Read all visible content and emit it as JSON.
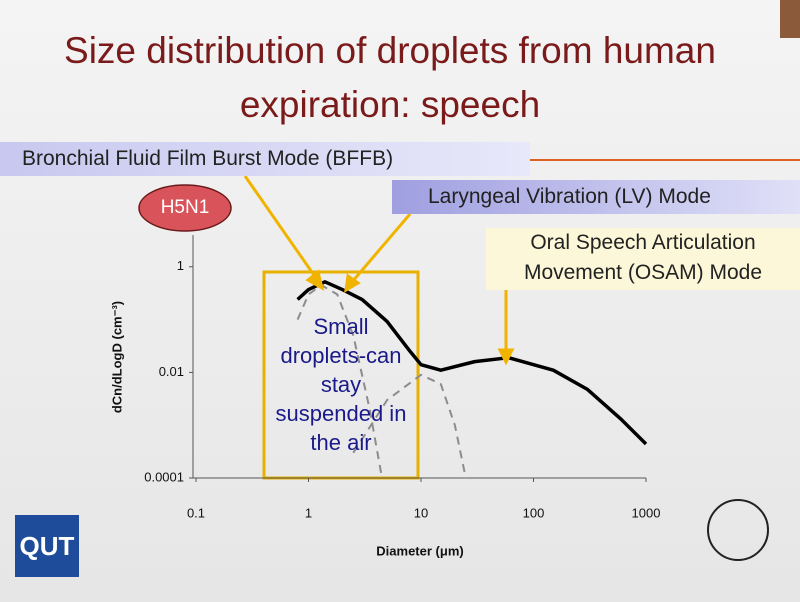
{
  "chart_data": {
    "type": "line",
    "title": "Size distribution of droplets from human expiration: speech",
    "x_label": "Diameter (μm)",
    "y_label": "dCn/dLogD (cm⁻³)",
    "log_x": true,
    "log_y": true,
    "xlim": [
      0.1,
      1000
    ],
    "xticks": [
      0.1,
      1,
      10,
      100,
      1000
    ],
    "ylim": [
      0.0001,
      4
    ],
    "yticks": [
      0.0001,
      0.01,
      1
    ],
    "annotations": [
      "Bronchial Fluid Film Burst Mode (BFFB)",
      "H5N1",
      "Laryngeal Vibration (LV) Mode",
      "Oral Speech Articulation Movement (OSAM) Mode",
      "Small droplets-can stay suspended in the air"
    ],
    "logo": "QUT",
    "series": [
      {
        "color": "#000000",
        "dash": false,
        "x": [
          0.8,
          1,
          1.4,
          2,
          3,
          5,
          8,
          10,
          15,
          30,
          60,
          150,
          300,
          600,
          1000
        ],
        "values": [
          0.24,
          0.37,
          0.52,
          0.37,
          0.24,
          0.092,
          0.025,
          0.014,
          0.011,
          0.016,
          0.019,
          0.011,
          0.0048,
          0.0013,
          0.00044
        ]
      },
      {
        "color": "#8c8c8c",
        "dash": true,
        "x": [
          0.8,
          1,
          1.3,
          1.8,
          2.5,
          3.5,
          4.5
        ],
        "values": [
          0.1,
          0.3,
          0.45,
          0.3,
          0.05,
          0.002,
          0.0001
        ]
      },
      {
        "color": "#8c8c8c",
        "dash": true,
        "x": [
          2.5,
          5,
          10,
          15,
          20,
          25
        ],
        "values": [
          0.0003,
          0.003,
          0.009,
          0.006,
          0.001,
          0.0001
        ]
      }
    ]
  }
}
